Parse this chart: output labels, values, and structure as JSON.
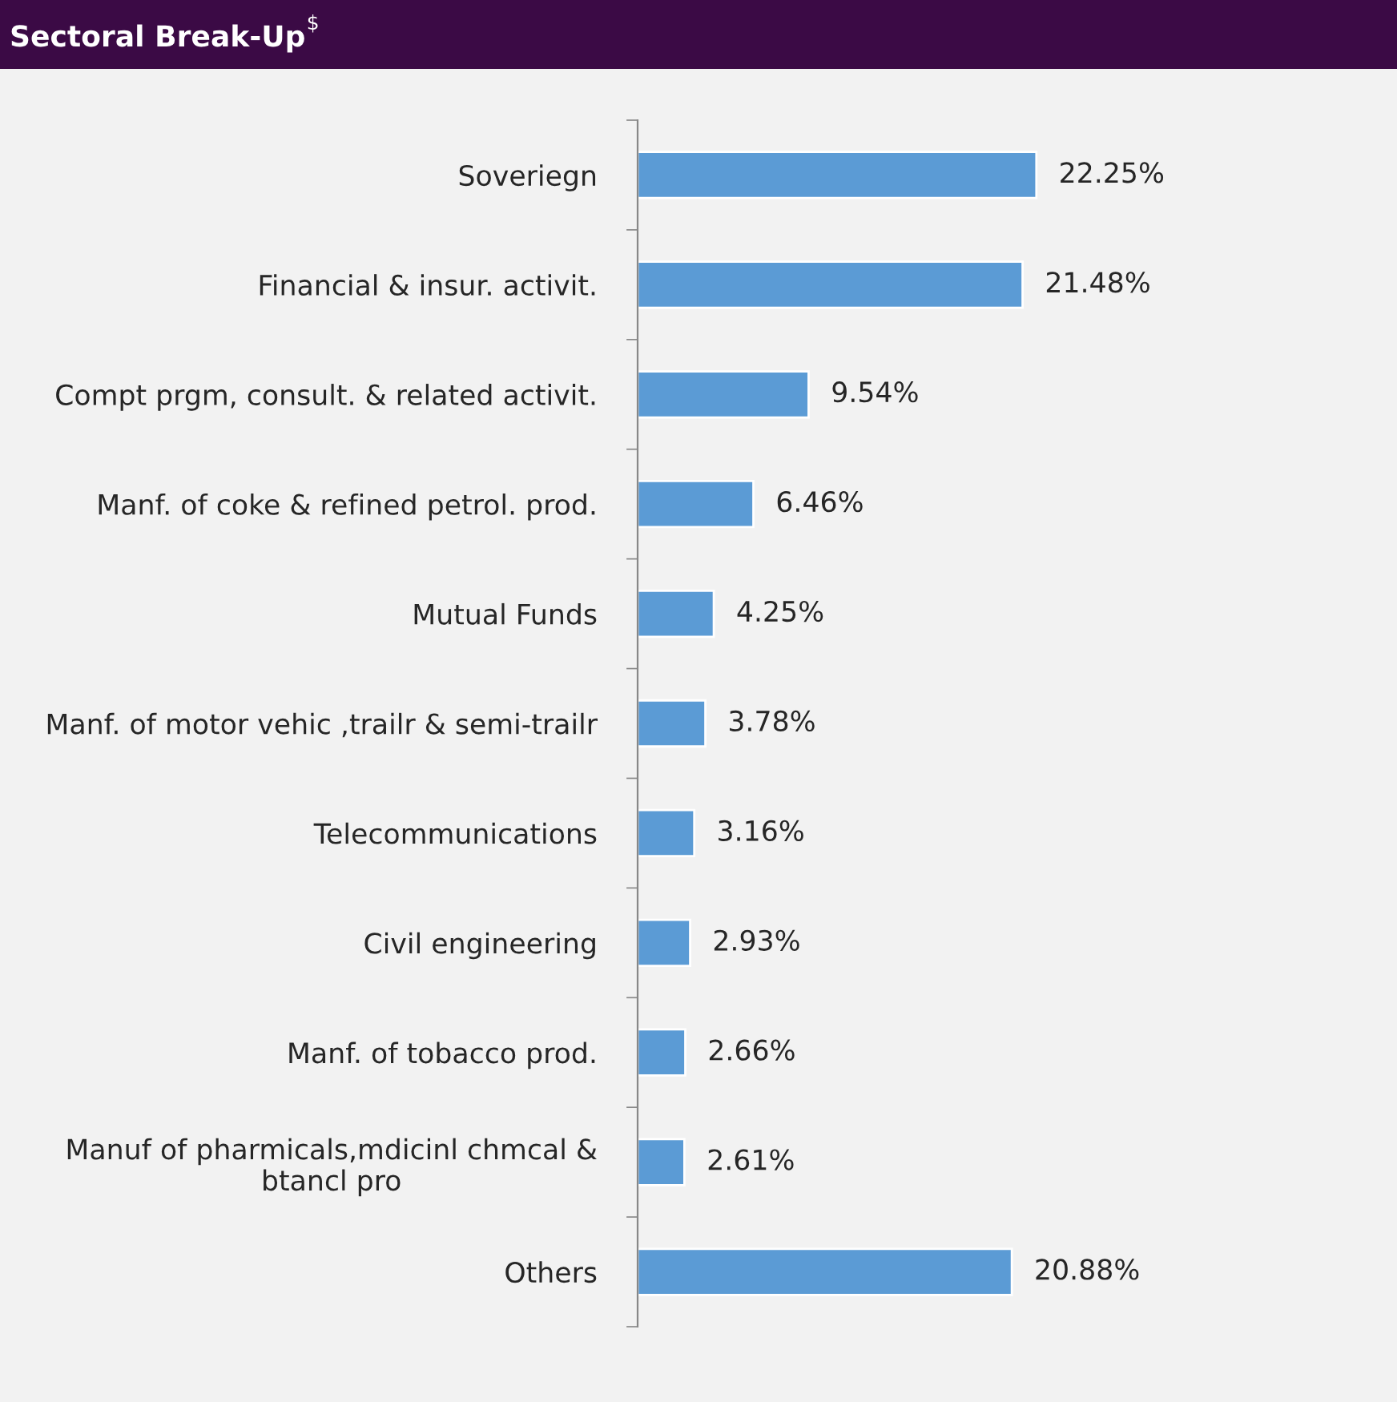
{
  "chart_data": {
    "type": "bar",
    "orientation": "horizontal",
    "title": "Sectoral Break-Up$^{$}$",
    "categories": [
      "Soveriegn",
      "Financial & insur. activit.",
      "Compt prgm, consult. & related activit.",
      "Manf. of coke & refined petrol. prod.",
      "Mutual Funds",
      "Manf. of motor vehic ,trailr & semi-trailr",
      "Telecommunications",
      "Civil engineering",
      "Manf. of tobacco prod.",
      "Manuf of pharmicals,mdicinl chmcal &\nbtancl pro",
      "Others"
    ],
    "values": [
      22.25,
      21.48,
      9.54,
      6.46,
      4.25,
      3.78,
      3.16,
      2.93,
      2.66,
      2.61,
      20.88
    ],
    "value_labels": [
      "22.25%",
      "21.48%",
      "9.54%",
      "6.46%",
      "4.25%",
      "3.78%",
      "3.16%",
      "2.93%",
      "2.66%",
      "2.61%",
      "20.88%"
    ],
    "color": "#5b9bd5",
    "grid": false,
    "legend": false
  }
}
